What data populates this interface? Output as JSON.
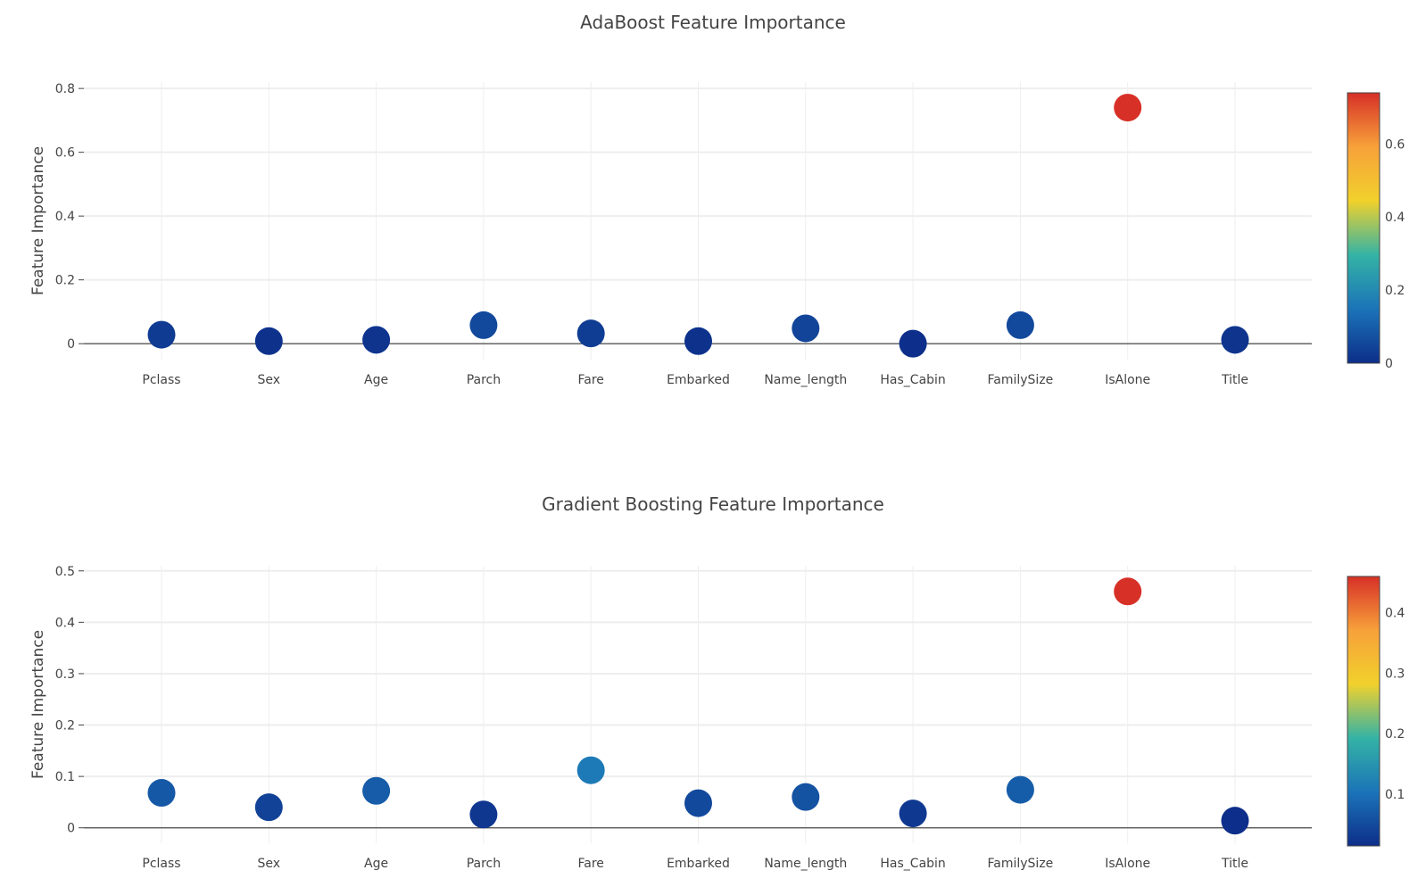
{
  "colorscale": [
    "#0d2e8a",
    "#1b74b8",
    "#34b3a5",
    "#f1d12c",
    "#f7a13a",
    "#d73027"
  ],
  "chart_data": [
    {
      "type": "scatter",
      "title": "AdaBoost Feature Importance",
      "xlabel": "",
      "ylabel": "Feature Importance",
      "categories": [
        "Pclass",
        "Sex",
        "Age",
        "Parch",
        "Fare",
        "Embarked",
        "Name_length",
        "Has_Cabin",
        "FamilySize",
        "IsAlone",
        "Title"
      ],
      "values": [
        0.028,
        0.008,
        0.012,
        0.058,
        0.032,
        0.008,
        0.048,
        0.0,
        0.058,
        0.74,
        0.012
      ],
      "ylim": [
        -0.05,
        0.82
      ],
      "yticks": [
        0,
        0.2,
        0.4,
        0.6,
        0.8
      ],
      "ytick_labels": [
        "0",
        "0.2",
        "0.4",
        "0.6",
        "0.8"
      ],
      "colorbar": {
        "range": [
          0,
          0.74
        ],
        "ticks": [
          0,
          0.2,
          0.4,
          0.6
        ],
        "tick_labels": [
          "0",
          "0.2",
          "0.4",
          "0.6"
        ]
      }
    },
    {
      "type": "scatter",
      "title": "Gradient Boosting Feature Importance",
      "xlabel": "",
      "ylabel": "Feature Importance",
      "categories": [
        "Pclass",
        "Sex",
        "Age",
        "Parch",
        "Fare",
        "Embarked",
        "Name_length",
        "Has_Cabin",
        "FamilySize",
        "IsAlone",
        "Title"
      ],
      "values": [
        0.068,
        0.04,
        0.072,
        0.026,
        0.112,
        0.048,
        0.06,
        0.028,
        0.074,
        0.46,
        0.014
      ],
      "ylim": [
        -0.03,
        0.51
      ],
      "yticks": [
        0,
        0.1,
        0.2,
        0.3,
        0.4,
        0.5
      ],
      "ytick_labels": [
        "0",
        "0.1",
        "0.2",
        "0.3",
        "0.4",
        "0.5"
      ],
      "colorbar": {
        "range": [
          0.014,
          0.46
        ],
        "ticks": [
          0.1,
          0.2,
          0.3,
          0.4
        ],
        "tick_labels": [
          "0.1",
          "0.2",
          "0.3",
          "0.4"
        ]
      }
    }
  ]
}
